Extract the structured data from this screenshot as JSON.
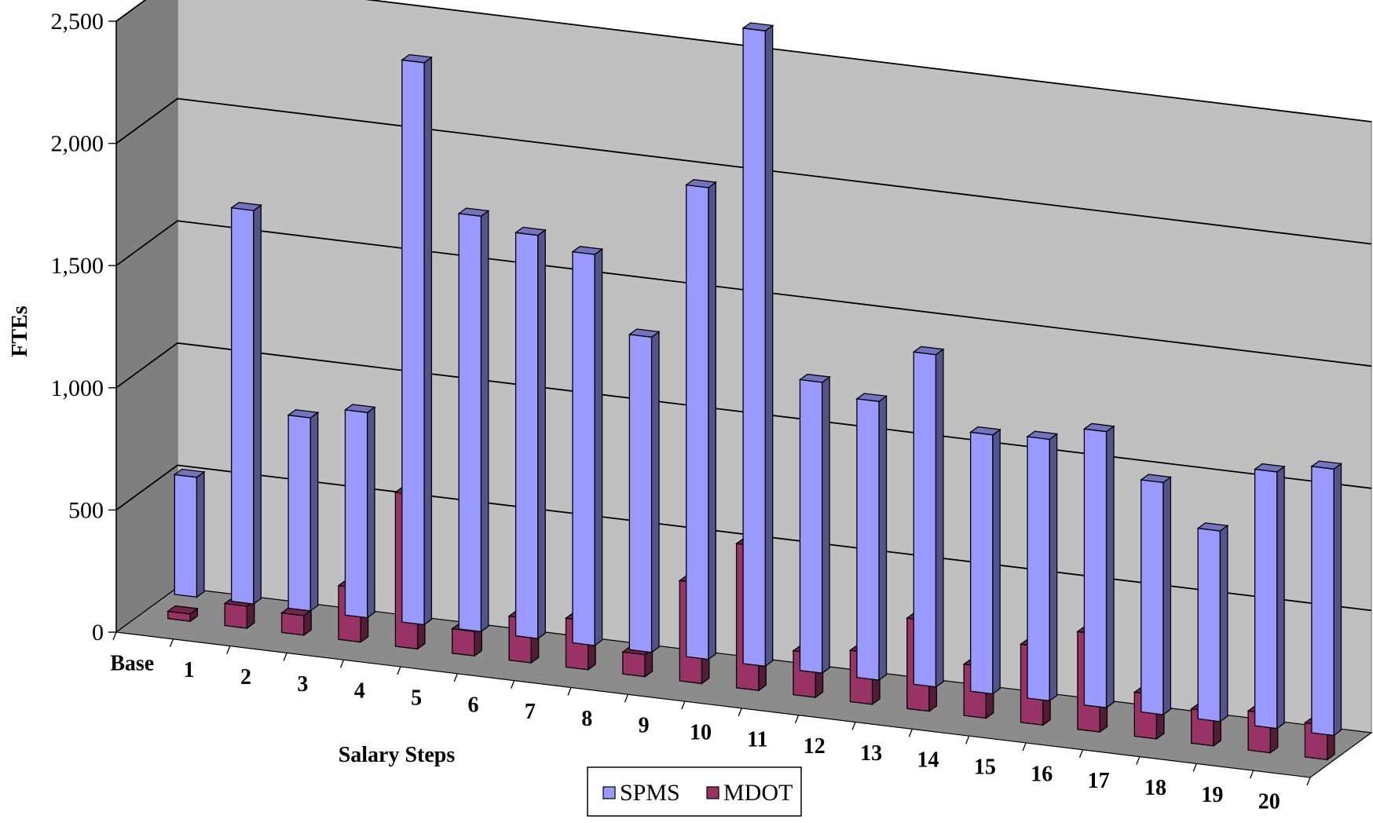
{
  "chart_data": {
    "type": "bar",
    "xlabel": "Salary Steps",
    "ylabel": "FTEs",
    "ylim": [
      0,
      2500
    ],
    "y_ticks": [
      "0",
      "500",
      "1,000",
      "1,500",
      "2,000",
      "2,500"
    ],
    "y_tick_values": [
      0,
      500,
      1000,
      1500,
      2000,
      2500
    ],
    "grid": true,
    "legend_position": "bottom-center",
    "categories": [
      "Base",
      "1",
      "2",
      "3",
      "4",
      "5",
      "6",
      "7",
      "8",
      "9",
      "10",
      "11",
      "12",
      "13",
      "14",
      "15",
      "16",
      "17",
      "18",
      "19",
      "20"
    ],
    "series": [
      {
        "name": "SPMS",
        "color": "#9999FF",
        "values": [
          490,
          1610,
          790,
          840,
          2300,
          1700,
          1650,
          1600,
          1290,
          1930,
          2600,
          1190,
          1140,
          1360,
          1060,
          1070,
          1130,
          950,
          780,
          1050,
          1090
        ]
      },
      {
        "name": "MDOT",
        "color": "#993366",
        "values": [
          30,
          90,
          80,
          220,
          630,
          100,
          180,
          200,
          90,
          410,
          590,
          180,
          210,
          370,
          210,
          320,
          400,
          180,
          140,
          160,
          140
        ]
      }
    ]
  }
}
